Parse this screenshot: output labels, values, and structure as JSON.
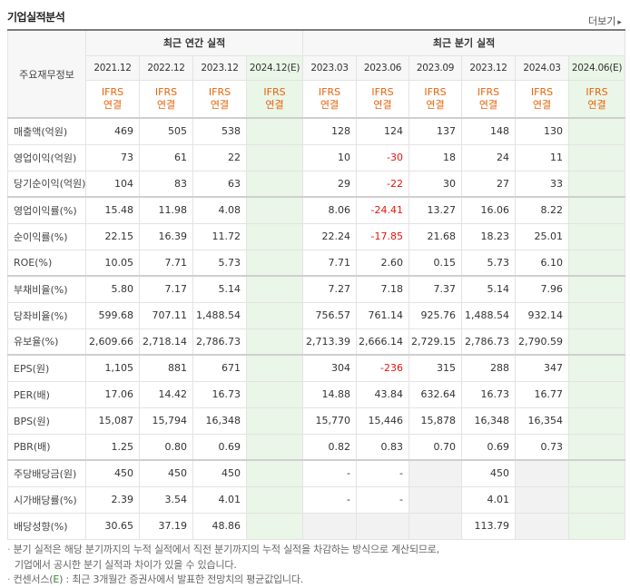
{
  "header": {
    "title": "기업실적분석",
    "more_label": "더보기",
    "more_arrow": "▸"
  },
  "table": {
    "corner_label": "주요재무정보",
    "annual_group_label": "최근 연간 실적",
    "quarter_group_label": "최근 분기 실적",
    "annual_periods": [
      "2021.12",
      "2022.12",
      "2023.12",
      "2024.12(E)"
    ],
    "quarter_periods": [
      "2023.03",
      "2023.06",
      "2023.09",
      "2023.12",
      "2024.03",
      "2024.06(E)"
    ],
    "ifrs_line1": "IFRS",
    "ifrs_line2": "연결",
    "rows": [
      {
        "label": "매출액(억원)",
        "annual": [
          "469",
          "505",
          "538",
          ""
        ],
        "quarter": [
          "128",
          "124",
          "137",
          "148",
          "130",
          ""
        ]
      },
      {
        "label": "영업이익(억원)",
        "annual": [
          "73",
          "61",
          "22",
          ""
        ],
        "quarter": [
          "10",
          "-30",
          "18",
          "24",
          "11",
          ""
        ]
      },
      {
        "label": "당기순이익(억원)",
        "annual": [
          "104",
          "83",
          "63",
          ""
        ],
        "quarter": [
          "29",
          "-22",
          "30",
          "27",
          "33",
          ""
        ]
      },
      {
        "label": "영업이익률(%)",
        "annual": [
          "15.48",
          "11.98",
          "4.08",
          ""
        ],
        "quarter": [
          "8.06",
          "-24.41",
          "13.27",
          "16.06",
          "8.22",
          ""
        ]
      },
      {
        "label": "순이익률(%)",
        "annual": [
          "22.15",
          "16.39",
          "11.72",
          ""
        ],
        "quarter": [
          "22.24",
          "-17.85",
          "21.68",
          "18.23",
          "25.01",
          ""
        ]
      },
      {
        "label": "ROE(%)",
        "annual": [
          "10.05",
          "7.71",
          "5.73",
          ""
        ],
        "quarter": [
          "7.71",
          "2.60",
          "0.15",
          "5.73",
          "6.10",
          ""
        ]
      },
      {
        "label": "부채비율(%)",
        "annual": [
          "5.80",
          "7.17",
          "5.14",
          ""
        ],
        "quarter": [
          "7.27",
          "7.18",
          "7.37",
          "5.14",
          "7.96",
          ""
        ]
      },
      {
        "label": "당좌비율(%)",
        "annual": [
          "599.68",
          "707.11",
          "1,488.54",
          ""
        ],
        "quarter": [
          "756.57",
          "761.14",
          "925.76",
          "1,488.54",
          "932.14",
          ""
        ]
      },
      {
        "label": "유보율(%)",
        "annual": [
          "2,609.66",
          "2,718.14",
          "2,786.73",
          ""
        ],
        "quarter": [
          "2,713.39",
          "2,666.14",
          "2,729.15",
          "2,786.73",
          "2,790.59",
          ""
        ]
      },
      {
        "label": "EPS(원)",
        "annual": [
          "1,105",
          "881",
          "671",
          ""
        ],
        "quarter": [
          "304",
          "-236",
          "315",
          "288",
          "347",
          ""
        ]
      },
      {
        "label": "PER(배)",
        "annual": [
          "17.06",
          "14.42",
          "16.73",
          ""
        ],
        "quarter": [
          "14.88",
          "43.84",
          "632.64",
          "16.73",
          "16.77",
          ""
        ]
      },
      {
        "label": "BPS(원)",
        "annual": [
          "15,087",
          "15,794",
          "16,348",
          ""
        ],
        "quarter": [
          "15,770",
          "15,446",
          "15,878",
          "16,348",
          "16,354",
          ""
        ]
      },
      {
        "label": "PBR(배)",
        "annual": [
          "1.25",
          "0.80",
          "0.69",
          ""
        ],
        "quarter": [
          "0.82",
          "0.83",
          "0.70",
          "0.69",
          "0.73",
          ""
        ]
      },
      {
        "label": "주당배당금(원)",
        "annual": [
          "450",
          "450",
          "450",
          ""
        ],
        "quarter": [
          "-",
          "-",
          "",
          "450",
          "",
          ""
        ]
      },
      {
        "label": "시가배당률(%)",
        "annual": [
          "2.39",
          "3.54",
          "4.01",
          ""
        ],
        "quarter": [
          "-",
          "-",
          "",
          "4.01",
          "",
          ""
        ]
      },
      {
        "label": "배당성향(%)",
        "annual": [
          "30.65",
          "37.19",
          "48.86",
          ""
        ],
        "quarter": [
          "",
          "",
          "",
          "113.79",
          "",
          ""
        ]
      }
    ]
  },
  "notes": {
    "line1": "분기 실적은 해당 분기까지의 누적 실적에서 직전 분기까지의 누적 실적을 차감하는 방식으로 계산되므로,",
    "line2": "기업에서 공시한 분기 실적과 차이가 있을 수 있습니다.",
    "line3_prefix": "컨센서스(",
    "line3_mark": "E",
    "line3_suffix": ") : 최근 3개월간 증권사에서 발표한 전망치의 평균값입니다."
  }
}
